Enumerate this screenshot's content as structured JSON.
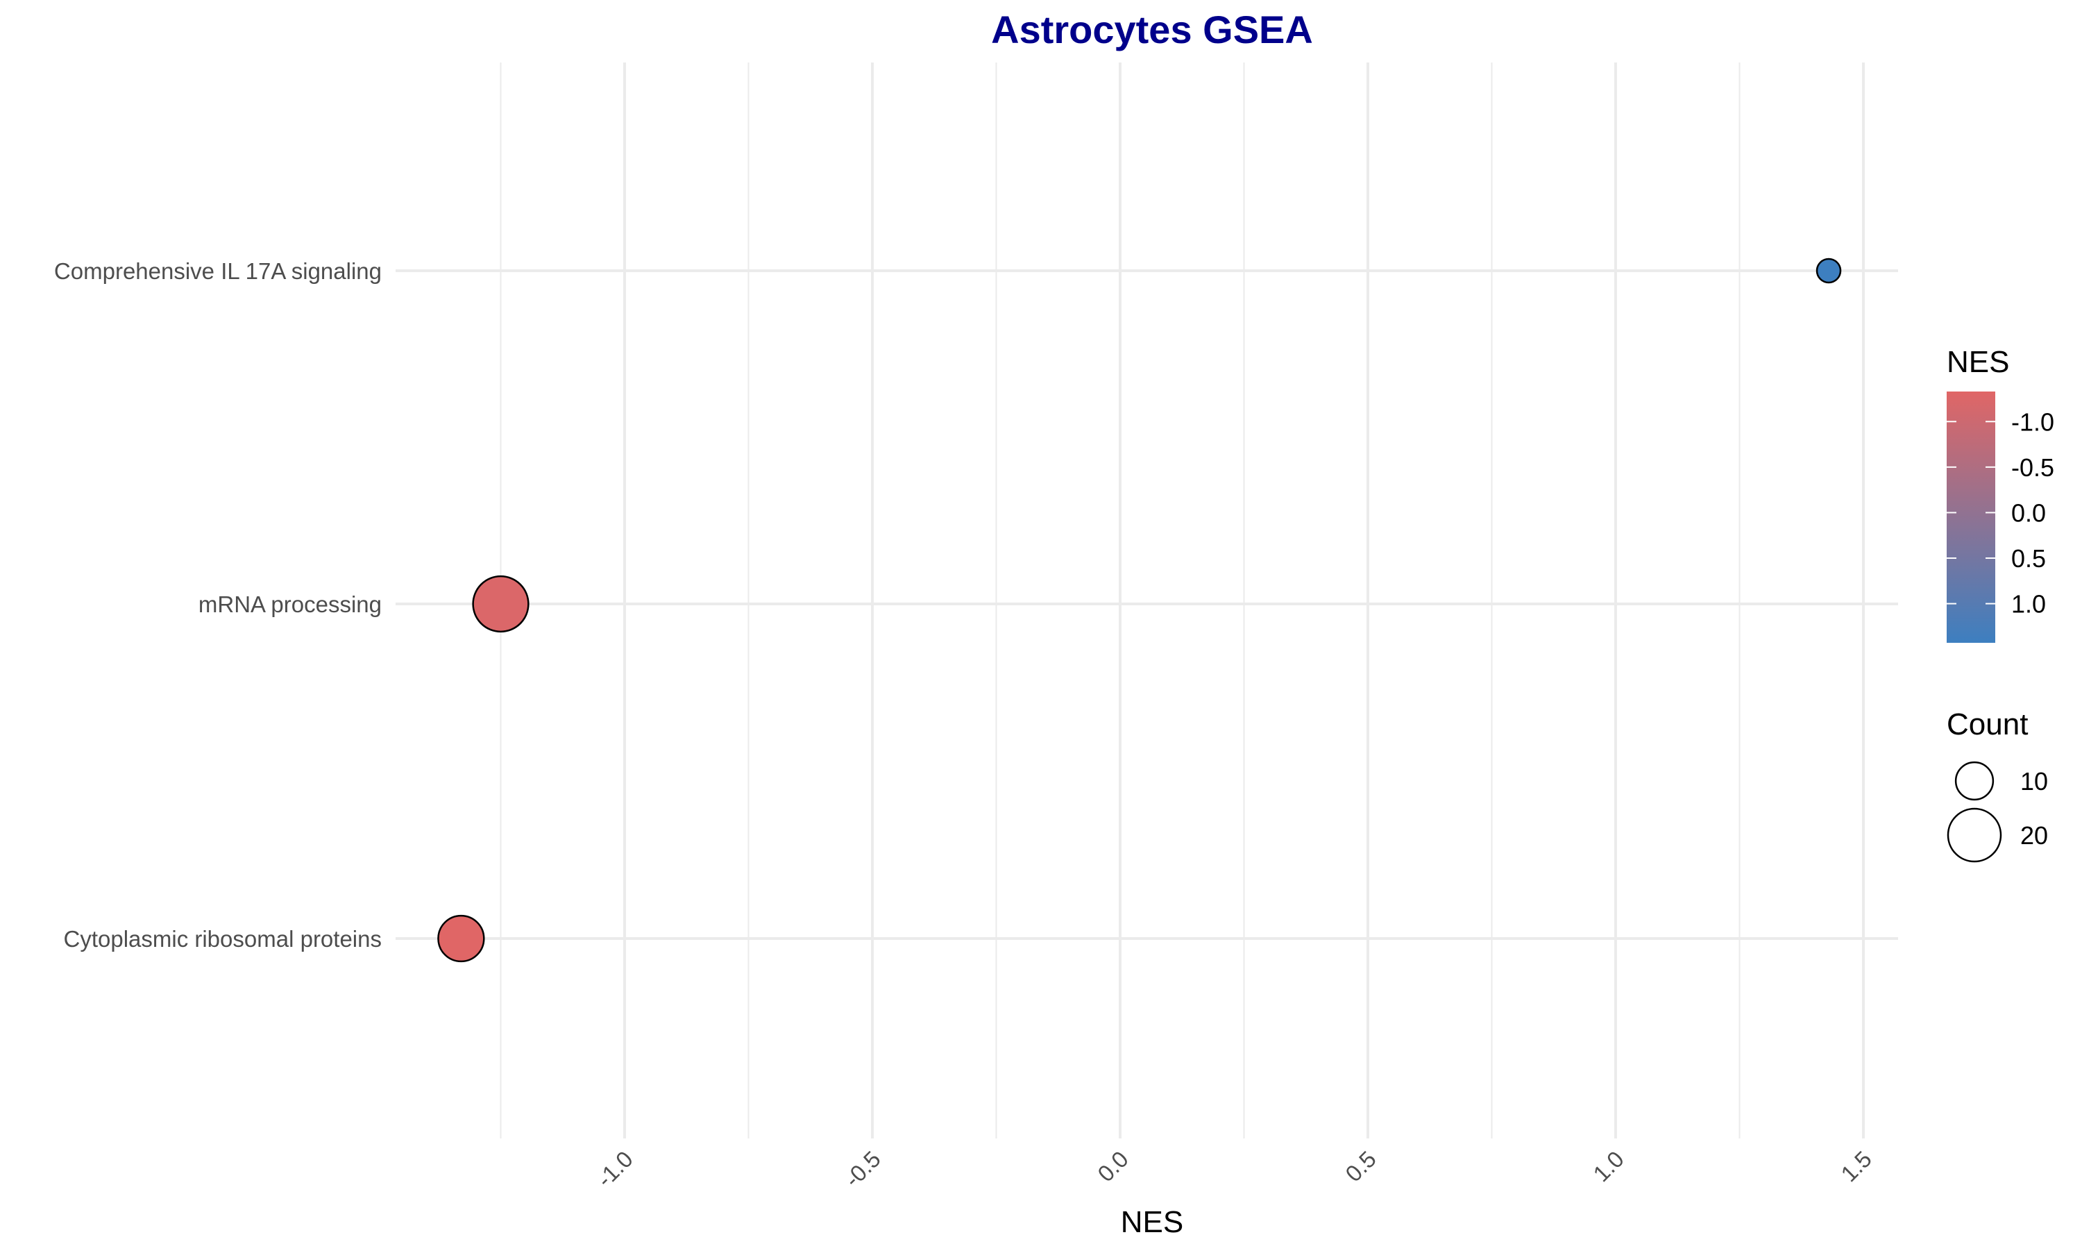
{
  "chart_data": {
    "type": "scatter",
    "title": "Astrocytes GSEA",
    "xlabel": "NES",
    "ylabel": "",
    "xlim": [
      -1.5,
      1.55
    ],
    "x_ticks": [
      -1.0,
      -0.5,
      0.0,
      0.5,
      1.0,
      1.5
    ],
    "x_tick_labels": [
      "-1.0",
      "-0.5",
      "0.0",
      "0.5",
      "1.0",
      "1.5"
    ],
    "categories": [
      "Comprehensive IL 17A signaling",
      "mRNA processing",
      "Cytoplasmic ribosomal proteins"
    ],
    "points": [
      {
        "pathway": "Comprehensive IL 17A signaling",
        "nes": 1.43,
        "count": 4
      },
      {
        "pathway": "mRNA processing",
        "nes": -1.25,
        "count": 22
      },
      {
        "pathway": "Cytoplasmic ribosomal proteins",
        "nes": -1.33,
        "count": 15
      }
    ],
    "grid": true,
    "legend_position": "right",
    "color_legend": {
      "title": "NES",
      "labels": [
        "-1.0",
        "-0.5",
        "0.0",
        "0.5",
        "1.0"
      ],
      "values": [
        -1.0,
        -0.5,
        0.0,
        0.5,
        1.0
      ],
      "low_color": "#e06666",
      "high_color": "#3d7fc0"
    },
    "size_legend": {
      "title": "Count",
      "labels": [
        "10",
        "20"
      ],
      "values": [
        10,
        20
      ]
    }
  },
  "colors": {
    "title": "#00008b",
    "grid": "#ebebeb",
    "point_outline": "#000000"
  }
}
